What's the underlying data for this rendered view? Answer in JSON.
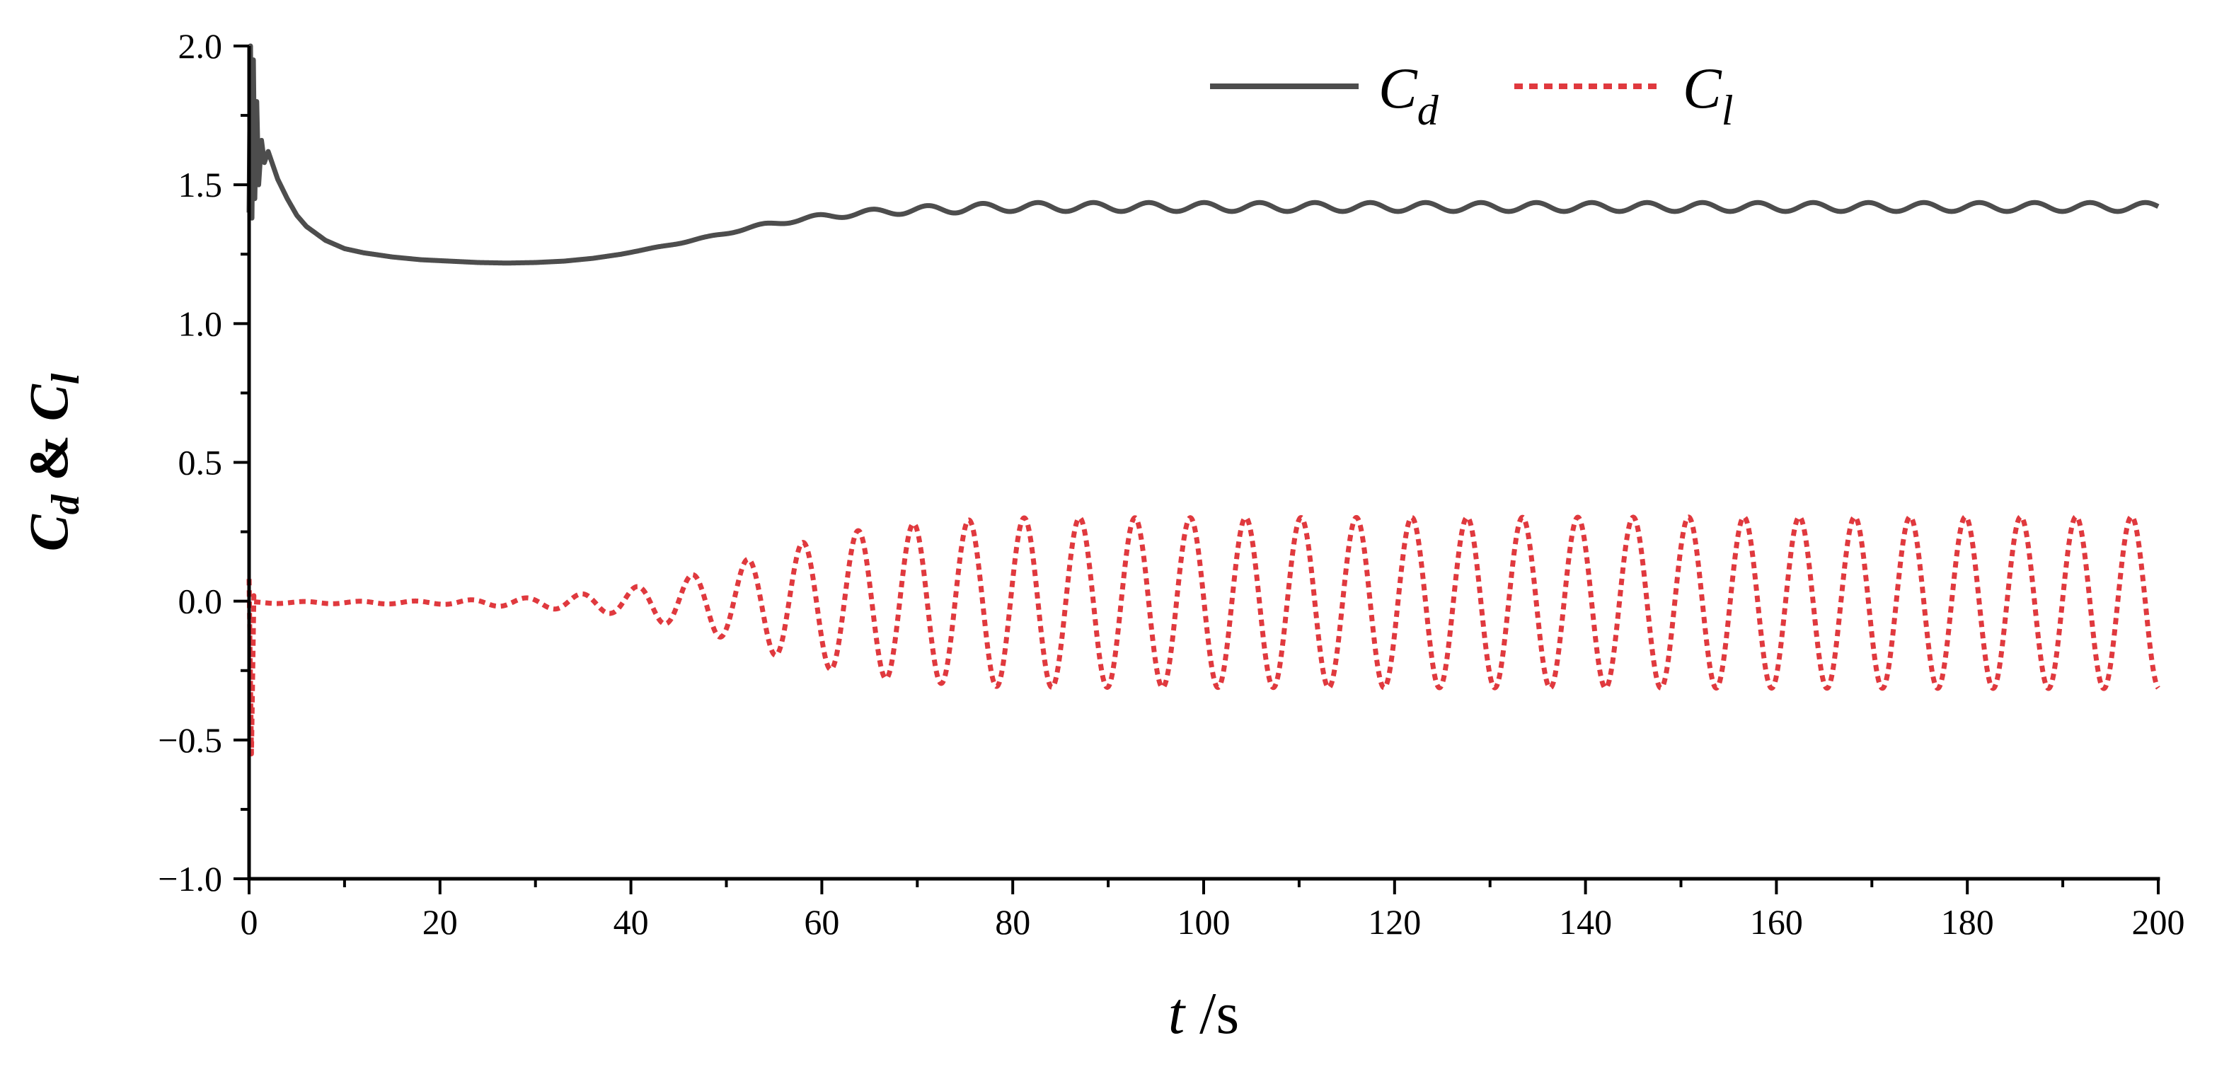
{
  "chart_data": {
    "type": "line",
    "x_axis": {
      "label_var": "t",
      "label_unit": "/s",
      "range": [
        0,
        200
      ],
      "ticks": [
        0,
        20,
        40,
        60,
        80,
        100,
        120,
        140,
        160,
        180,
        200
      ],
      "tick_labels": [
        "0",
        "20",
        "40",
        "60",
        "80",
        "100",
        "120",
        "140",
        "160",
        "180",
        "200"
      ]
    },
    "y_axis": {
      "label_var1": "C",
      "label_sub1": "d",
      "label_amp": " & ",
      "label_var2": "C",
      "label_sub2": "l",
      "range": [
        -1.0,
        2.0
      ],
      "ticks": [
        -1.0,
        -0.5,
        0.0,
        0.5,
        1.0,
        1.5,
        2.0
      ],
      "tick_labels": [
        "−1.0",
        "−0.5",
        "0.0",
        "0.5",
        "1.0",
        "1.5",
        "2.0"
      ]
    },
    "legend": {
      "placement": "top-right",
      "entries": [
        {
          "var": "C",
          "sub": "d"
        },
        {
          "var": "C",
          "sub": "l"
        }
      ]
    },
    "series": [
      {
        "key": "Cd",
        "color": "#4d4d4d",
        "style": "solid",
        "transient_points": [
          [
            0,
            1.4
          ],
          [
            0.15,
            2.0
          ],
          [
            0.3,
            1.38
          ],
          [
            0.45,
            1.95
          ],
          [
            0.6,
            1.45
          ],
          [
            0.8,
            1.8
          ],
          [
            1.0,
            1.5
          ],
          [
            1.3,
            1.66
          ],
          [
            1.6,
            1.58
          ],
          [
            2,
            1.62
          ],
          [
            3,
            1.52
          ],
          [
            4,
            1.45
          ],
          [
            5,
            1.39
          ],
          [
            6,
            1.35
          ],
          [
            8,
            1.3
          ],
          [
            10,
            1.27
          ],
          [
            12,
            1.255
          ],
          [
            15,
            1.24
          ],
          [
            18,
            1.23
          ],
          [
            21,
            1.225
          ],
          [
            24,
            1.22
          ],
          [
            27,
            1.218
          ],
          [
            30,
            1.22
          ],
          [
            33,
            1.225
          ],
          [
            36,
            1.235
          ],
          [
            39,
            1.25
          ],
          [
            42,
            1.27
          ],
          [
            45,
            1.29
          ],
          [
            48,
            1.31
          ],
          [
            51,
            1.335
          ],
          [
            54,
            1.355
          ],
          [
            57,
            1.372
          ],
          [
            60,
            1.385
          ],
          [
            63,
            1.395
          ],
          [
            66,
            1.402
          ],
          [
            69,
            1.408
          ],
          [
            72,
            1.412
          ],
          [
            75,
            1.415
          ],
          [
            80,
            1.42
          ],
          [
            200,
            1.42
          ]
        ],
        "oscillation": {
          "period": 5.8,
          "amplitude_max": 0.016,
          "growth_start": 40,
          "growth_end": 75
        }
      },
      {
        "key": "Cl",
        "color": "#e0393e",
        "style": "dotted",
        "startup_spike": [
          [
            0,
            0.08
          ],
          [
            0.25,
            -0.55
          ],
          [
            0.5,
            0.02
          ]
        ],
        "amplitude_envelope": [
          [
            0.5,
            0.003
          ],
          [
            20,
            0.006
          ],
          [
            30,
            0.018
          ],
          [
            38,
            0.04
          ],
          [
            44,
            0.08
          ],
          [
            50,
            0.13
          ],
          [
            56,
            0.2
          ],
          [
            62,
            0.25
          ],
          [
            68,
            0.28
          ],
          [
            74,
            0.295
          ],
          [
            80,
            0.305
          ],
          [
            200,
            0.31
          ]
        ],
        "period": 5.8,
        "phase_ref_time": 58,
        "offset": -0.005
      }
    ]
  }
}
